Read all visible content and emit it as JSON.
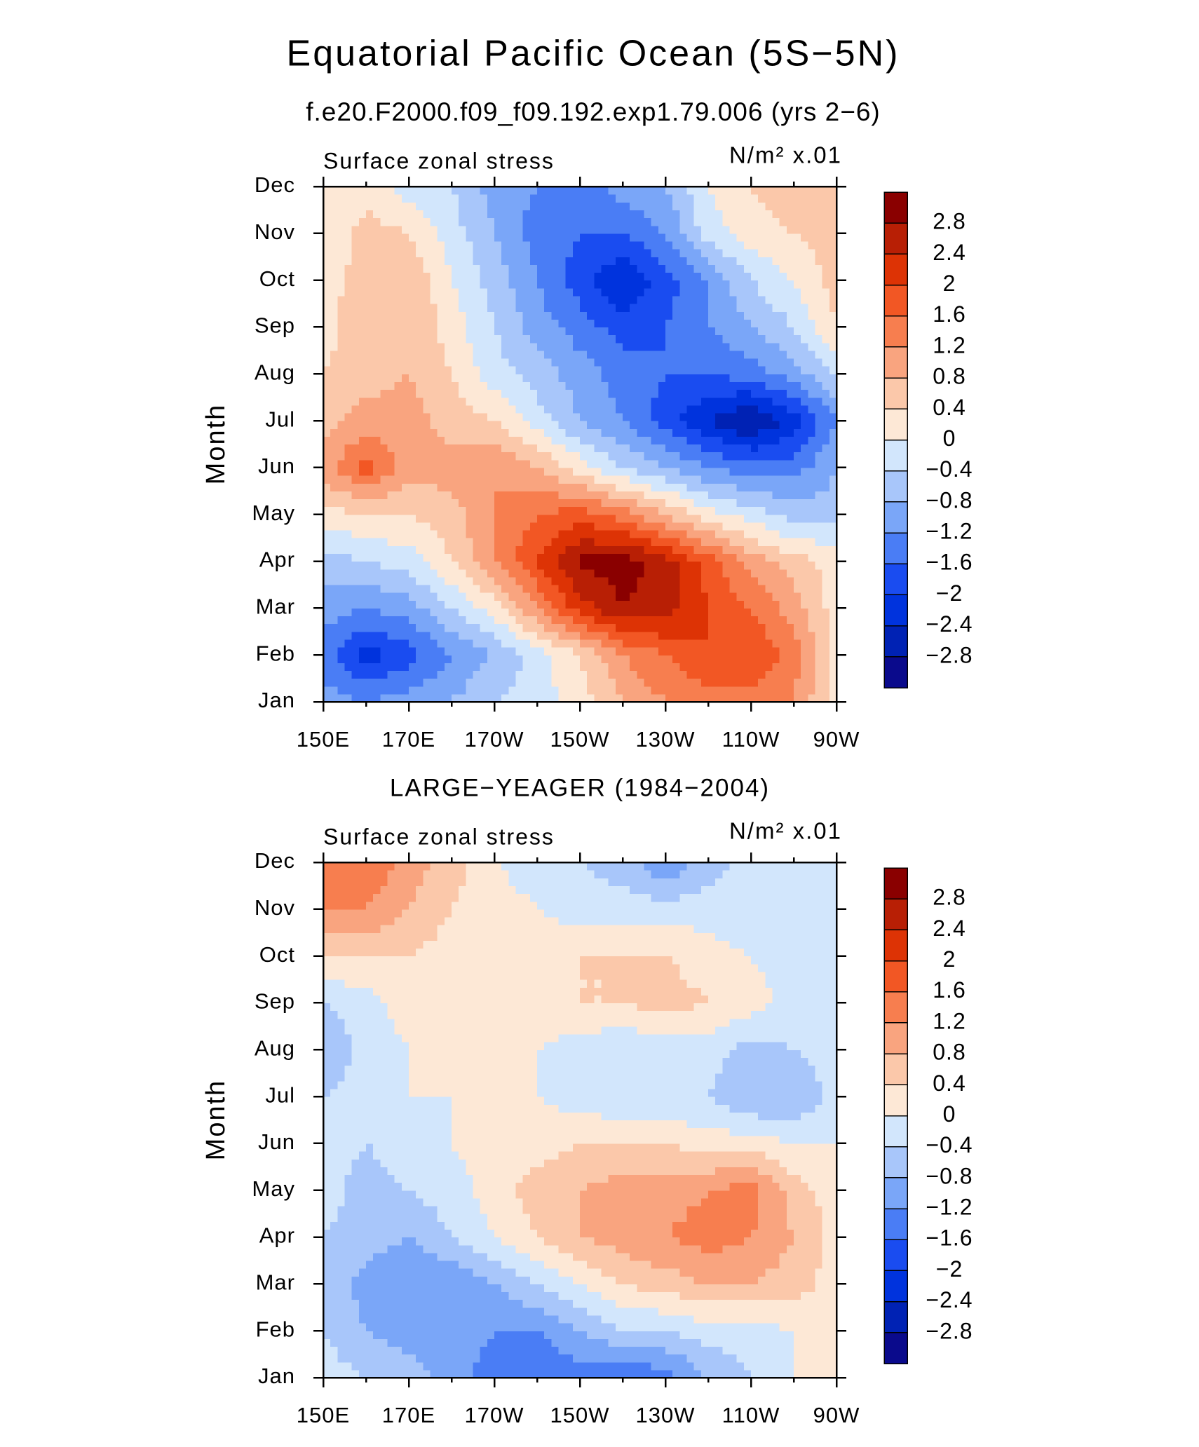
{
  "chart_data": [
    {
      "type": "contour",
      "title": "Equatorial Pacific Ocean (5S−5N)",
      "subtitle": "f.e20.F2000.f09_f09.192.exp1.79.006 (yrs 2−6)",
      "left_label": "Surface zonal stress",
      "right_label": "N/m² x.01",
      "y_label": "Month",
      "x": [
        150,
        160,
        170,
        180,
        190,
        200,
        210,
        220,
        230,
        240,
        250,
        260,
        270
      ],
      "categories": [
        "Jan",
        "Feb",
        "Mar",
        "Apr",
        "May",
        "Jun",
        "Jul",
        "Aug",
        "Sep",
        "Oct",
        "Nov",
        "Dec"
      ],
      "xlim": [
        150,
        270
      ],
      "xticks": [
        {
          "value": 150,
          "label": "150E"
        },
        {
          "value": 170,
          "label": "170E"
        },
        {
          "value": 190,
          "label": "170W"
        },
        {
          "value": 210,
          "label": "150W"
        },
        {
          "value": 230,
          "label": "130W"
        },
        {
          "value": 250,
          "label": "110W"
        },
        {
          "value": 270,
          "label": "90W"
        }
      ],
      "values": [
        [
          -1.0,
          -1.2,
          -1.0,
          -0.8,
          -0.4,
          -0.2,
          0.2,
          0.8,
          1.2,
          1.4,
          1.4,
          1.2,
          0.2
        ],
        [
          -1.4,
          -2.2,
          -1.8,
          -1.2,
          -0.8,
          -0.2,
          0.4,
          1.2,
          1.6,
          2.0,
          2.0,
          1.4,
          0.2
        ],
        [
          -1.0,
          -1.2,
          -1.0,
          -0.4,
          0.2,
          1.2,
          2.2,
          2.8,
          2.6,
          2.0,
          1.6,
          1.0,
          0.2
        ],
        [
          -0.6,
          -0.4,
          -0.2,
          0.4,
          1.2,
          2.0,
          2.9,
          3.0,
          2.6,
          1.8,
          1.0,
          0.6,
          0.2
        ],
        [
          0.2,
          0.4,
          0.4,
          0.6,
          1.2,
          1.6,
          1.8,
          1.4,
          0.8,
          0.2,
          -0.2,
          -0.6,
          -0.6
        ],
        [
          1.0,
          1.8,
          1.0,
          1.0,
          1.2,
          0.8,
          0.2,
          -0.4,
          -0.8,
          -1.2,
          -1.4,
          -1.4,
          -0.8
        ],
        [
          0.6,
          1.0,
          1.0,
          0.6,
          0.4,
          -0.2,
          -0.8,
          -1.2,
          -1.8,
          -2.4,
          -2.9,
          -2.2,
          -1.2
        ],
        [
          0.4,
          0.6,
          0.8,
          0.4,
          -0.2,
          -0.6,
          -1.0,
          -1.4,
          -1.6,
          -1.6,
          -1.4,
          -1.0,
          -0.4
        ],
        [
          0.2,
          0.8,
          0.8,
          0.2,
          -0.4,
          -1.0,
          -1.4,
          -1.8,
          -1.6,
          -1.2,
          -0.8,
          -0.4,
          0.4
        ],
        [
          0.2,
          0.6,
          0.8,
          0.0,
          -0.6,
          -1.2,
          -1.8,
          -2.4,
          -1.8,
          -1.2,
          -0.4,
          0.0,
          0.6
        ],
        [
          0.0,
          0.6,
          0.4,
          -0.2,
          -0.8,
          -1.4,
          -1.6,
          -1.6,
          -1.2,
          -0.2,
          0.2,
          0.4,
          0.6
        ],
        [
          0.0,
          0.2,
          -0.2,
          -0.4,
          -1.0,
          -1.2,
          -1.4,
          -1.0,
          -0.8,
          0.0,
          0.4,
          0.6,
          0.6
        ]
      ],
      "levels": [
        {
          "value": -2.8,
          "label": "−2.8"
        },
        {
          "value": -2.4,
          "label": "−2.4"
        },
        {
          "value": -2,
          "label": "−2"
        },
        {
          "value": -1.6,
          "label": "−1.6"
        },
        {
          "value": -1.2,
          "label": "−1.2"
        },
        {
          "value": -0.8,
          "label": "−0.8"
        },
        {
          "value": -0.4,
          "label": "−0.4"
        },
        0,
        0.4,
        0.8,
        1.2,
        1.6,
        2,
        2.4,
        2.8
      ],
      "colors": [
        "#0a0a8c",
        "#0022b4",
        "#0033dd",
        "#1a4cf0",
        "#4a7df5",
        "#7aa6f8",
        "#a8c6fa",
        "#d2e6fc",
        "#fde8d6",
        "#fbc8aa",
        "#f9a47f",
        "#f77e4f",
        "#f25724",
        "#dd3305",
        "#b81f05",
        "#8a0000"
      ]
    },
    {
      "type": "contour",
      "title": "LARGE−YEAGER (1984−2004)",
      "left_label": "Surface zonal stress",
      "right_label": "N/m² x.01",
      "y_label": "Month",
      "x": [
        150,
        160,
        170,
        180,
        190,
        200,
        210,
        220,
        230,
        240,
        250,
        260,
        270
      ],
      "categories": [
        "Jan",
        "Feb",
        "Mar",
        "Apr",
        "May",
        "Jun",
        "Jul",
        "Aug",
        "Sep",
        "Oct",
        "Nov",
        "Dec"
      ],
      "xlim": [
        150,
        270
      ],
      "xticks": [
        {
          "value": 150,
          "label": "150E"
        },
        {
          "value": 170,
          "label": "170E"
        },
        {
          "value": 190,
          "label": "170W"
        },
        {
          "value": 210,
          "label": "150W"
        },
        {
          "value": 230,
          "label": "130W"
        },
        {
          "value": 250,
          "label": "110W"
        },
        {
          "value": 270,
          "label": "90W"
        }
      ],
      "values": [
        [
          -0.2,
          -0.4,
          -0.6,
          -1.0,
          -1.4,
          -1.6,
          -1.4,
          -1.6,
          -1.4,
          -0.8,
          -0.4,
          0.0,
          0.2
        ],
        [
          -0.4,
          -0.8,
          -1.0,
          -1.0,
          -1.2,
          -1.2,
          -0.8,
          -0.4,
          -0.4,
          -0.2,
          -0.2,
          0.0,
          0.2
        ],
        [
          -0.4,
          -1.0,
          -1.2,
          -1.2,
          -0.8,
          -0.4,
          0.0,
          0.4,
          0.6,
          0.8,
          0.8,
          0.6,
          0.2
        ],
        [
          -0.4,
          -0.6,
          -0.8,
          -0.4,
          0.0,
          0.4,
          0.8,
          1.0,
          1.2,
          1.4,
          1.2,
          0.8,
          0.2
        ],
        [
          -0.2,
          -0.6,
          -0.4,
          -0.2,
          0.2,
          0.6,
          0.8,
          1.0,
          1.0,
          1.2,
          1.4,
          0.6,
          0.2
        ],
        [
          -0.2,
          -0.4,
          -0.2,
          0.0,
          0.2,
          0.2,
          0.4,
          0.4,
          0.4,
          0.2,
          0.2,
          0.0,
          0.0
        ],
        [
          -0.4,
          -0.2,
          0.0,
          0.0,
          0.2,
          0.0,
          -0.2,
          -0.4,
          -0.4,
          -0.4,
          -0.8,
          -0.8,
          -0.2
        ],
        [
          -0.8,
          -0.2,
          0.0,
          0.0,
          0.2,
          0.0,
          -0.2,
          -0.4,
          -0.2,
          -0.2,
          -0.6,
          -0.4,
          -0.2
        ],
        [
          -0.4,
          -0.2,
          0.2,
          0.2,
          0.2,
          0.2,
          0.4,
          0.4,
          0.6,
          0.4,
          0.2,
          -0.2,
          -0.2
        ],
        [
          0.4,
          0.4,
          0.4,
          0.2,
          0.2,
          0.2,
          0.4,
          0.4,
          0.4,
          0.2,
          0.0,
          -0.2,
          0.0
        ],
        [
          1.2,
          1.2,
          0.8,
          0.4,
          0.2,
          0.0,
          -0.2,
          -0.2,
          -0.2,
          -0.2,
          -0.4,
          -0.2,
          0.0
        ],
        [
          1.2,
          1.6,
          1.0,
          0.6,
          0.0,
          -0.2,
          -0.4,
          -0.6,
          -1.2,
          -0.6,
          -0.2,
          0.0,
          0.0
        ]
      ],
      "levels": [
        {
          "value": -2.8,
          "label": "−2.8"
        },
        {
          "value": -2.4,
          "label": "−2.4"
        },
        {
          "value": -2,
          "label": "−2"
        },
        {
          "value": -1.6,
          "label": "−1.6"
        },
        {
          "value": -1.2,
          "label": "−1.2"
        },
        {
          "value": -0.8,
          "label": "−0.8"
        },
        {
          "value": -0.4,
          "label": "−0.4"
        },
        0,
        0.4,
        0.8,
        1.2,
        1.6,
        2,
        2.4,
        2.8
      ],
      "colors": [
        "#0a0a8c",
        "#0022b4",
        "#0033dd",
        "#1a4cf0",
        "#4a7df5",
        "#7aa6f8",
        "#a8c6fa",
        "#d2e6fc",
        "#fde8d6",
        "#fbc8aa",
        "#f9a47f",
        "#f77e4f",
        "#f25724",
        "#dd3305",
        "#b81f05",
        "#8a0000"
      ]
    }
  ]
}
